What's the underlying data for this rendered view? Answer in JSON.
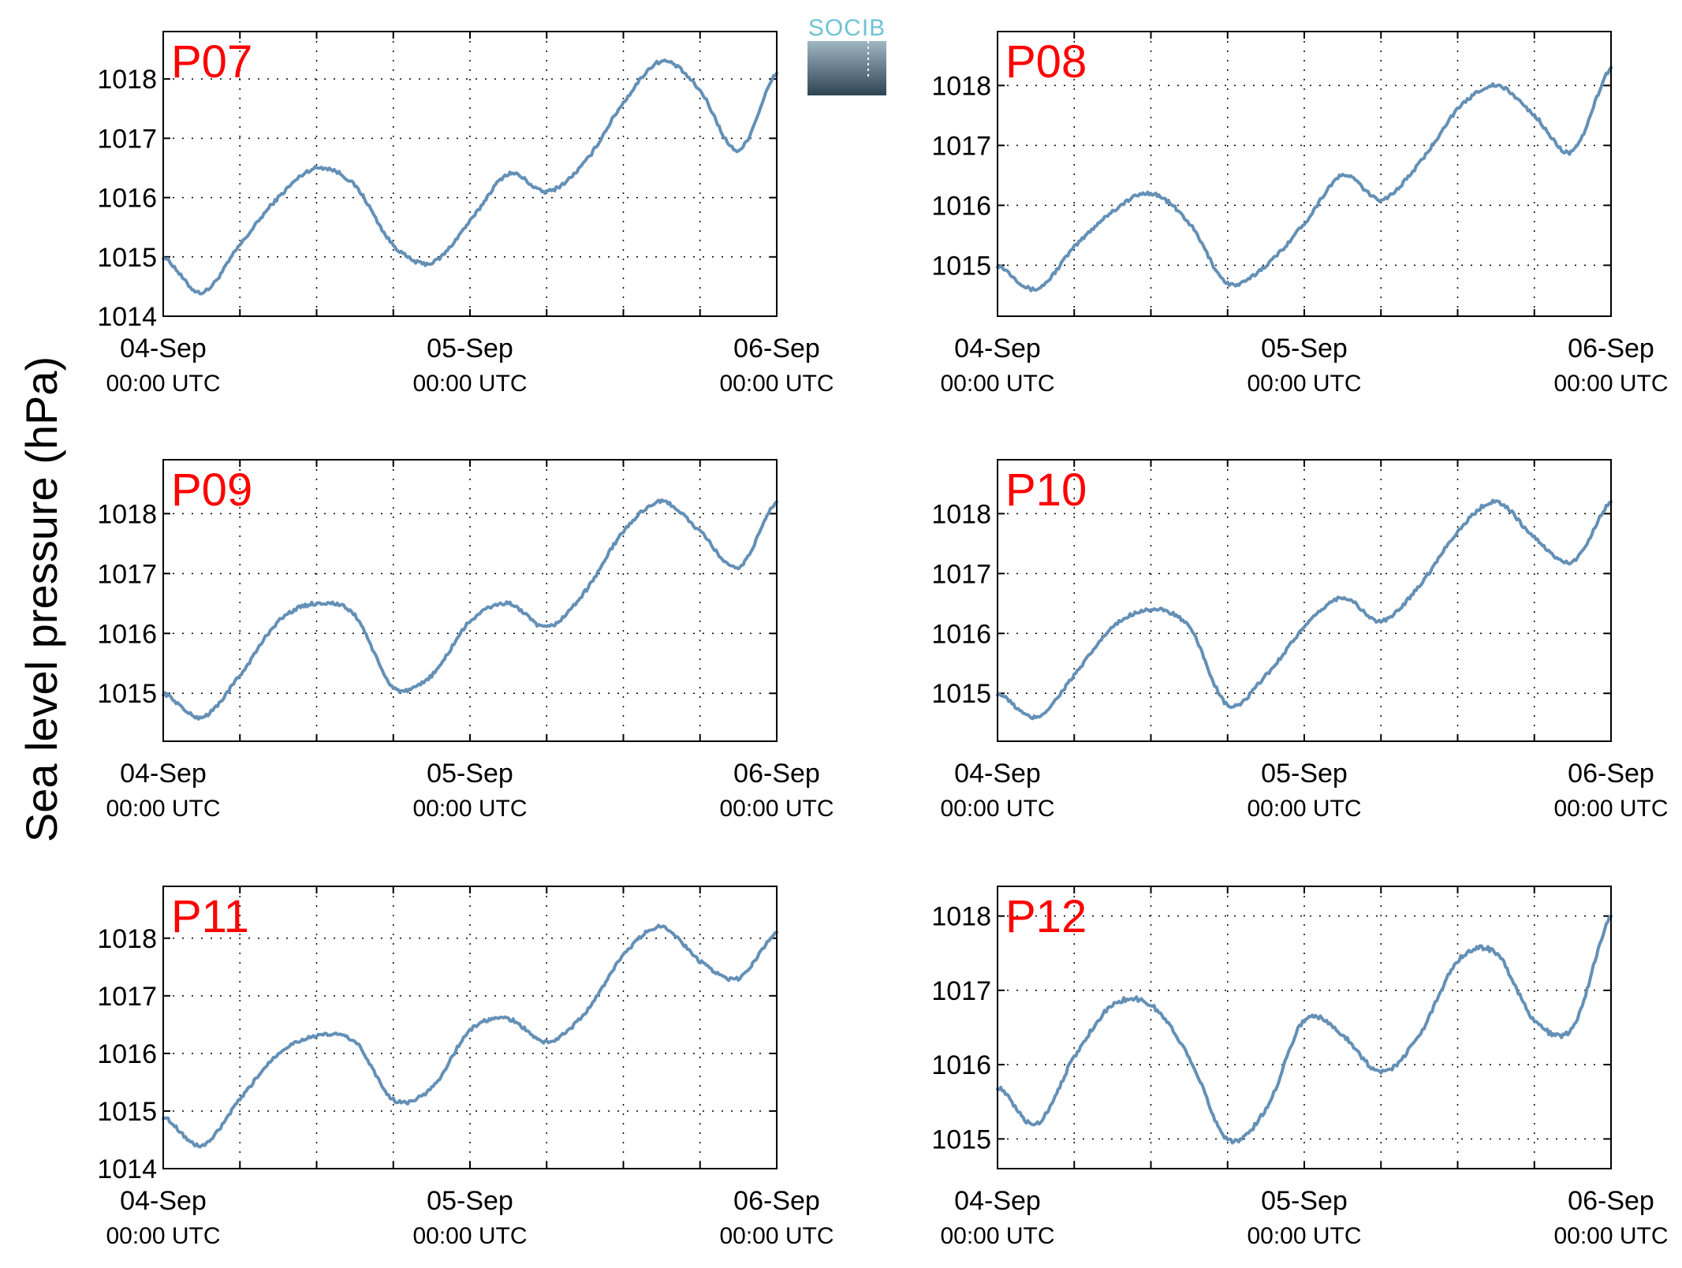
{
  "colors": {
    "series": "#6490b6",
    "title": "#ff0000",
    "axis": "#000000",
    "grid": "#000000"
  },
  "figure": {
    "ylabel": "Sea level pressure (hPa)",
    "logo": "SOCIB"
  },
  "chart_data": [
    {
      "type": "line",
      "title": "P07",
      "xticks": [
        {
          "date": "04-Sep",
          "time": "00:00 UTC"
        },
        {
          "date": "05-Sep",
          "time": "00:00 UTC"
        },
        {
          "date": "06-Sep",
          "time": "00:00 UTC"
        }
      ],
      "xlim": [
        "2023-09-04 00:00",
        "2023-09-06 00:00"
      ],
      "ylim": [
        1014,
        1018.8
      ],
      "yticks": [
        "1014",
        "1015",
        "1016",
        "1017",
        "1018"
      ],
      "grid": true,
      "x": [
        "2023-09-04 00:00",
        "2023-09-04 03:00",
        "2023-09-04 06:00",
        "2023-09-04 09:00",
        "2023-09-04 12:00",
        "2023-09-04 15:00",
        "2023-09-04 18:00",
        "2023-09-04 21:00",
        "2023-09-05 00:00",
        "2023-09-05 03:00",
        "2023-09-05 06:00",
        "2023-09-05 09:00",
        "2023-09-05 12:00",
        "2023-09-05 15:00",
        "2023-09-05 18:00",
        "2023-09-05 21:00",
        "2023-09-06 00:00"
      ],
      "y": [
        1015.0,
        1014.4,
        1015.2,
        1016.0,
        1016.5,
        1016.2,
        1015.2,
        1014.9,
        1015.6,
        1016.4,
        1016.1,
        1016.6,
        1017.6,
        1018.3,
        1017.8,
        1016.8,
        1018.1
      ]
    },
    {
      "type": "line",
      "title": "P08",
      "xticks": [
        {
          "date": "04-Sep",
          "time": "00:00 UTC"
        },
        {
          "date": "05-Sep",
          "time": "00:00 UTC"
        },
        {
          "date": "06-Sep",
          "time": "00:00 UTC"
        }
      ],
      "xlim": [
        "2023-09-04 00:00",
        "2023-09-06 00:00"
      ],
      "ylim": [
        1014.15,
        1018.9
      ],
      "yticks": [
        "1015",
        "1016",
        "1017",
        "1018"
      ],
      "grid": true,
      "x": [
        "2023-09-04 00:00",
        "2023-09-04 03:00",
        "2023-09-04 06:00",
        "2023-09-04 09:00",
        "2023-09-04 12:00",
        "2023-09-04 15:00",
        "2023-09-04 18:00",
        "2023-09-04 21:00",
        "2023-09-05 00:00",
        "2023-09-05 03:00",
        "2023-09-05 06:00",
        "2023-09-05 09:00",
        "2023-09-05 12:00",
        "2023-09-05 15:00",
        "2023-09-05 18:00",
        "2023-09-05 21:00",
        "2023-09-06 00:00"
      ],
      "y": [
        1015.0,
        1014.6,
        1015.3,
        1015.9,
        1016.2,
        1015.7,
        1014.7,
        1015.0,
        1015.7,
        1016.5,
        1016.1,
        1016.7,
        1017.6,
        1018.0,
        1017.5,
        1016.9,
        1018.3
      ]
    },
    {
      "type": "line",
      "title": "P09",
      "xticks": [
        {
          "date": "04-Sep",
          "time": "00:00 UTC"
        },
        {
          "date": "05-Sep",
          "time": "00:00 UTC"
        },
        {
          "date": "06-Sep",
          "time": "00:00 UTC"
        }
      ],
      "xlim": [
        "2023-09-04 00:00",
        "2023-09-06 00:00"
      ],
      "ylim": [
        1014.2,
        1018.9
      ],
      "yticks": [
        "1015",
        "1016",
        "1017",
        "1018"
      ],
      "grid": true,
      "x": [
        "2023-09-04 00:00",
        "2023-09-04 03:00",
        "2023-09-04 06:00",
        "2023-09-04 09:00",
        "2023-09-04 12:00",
        "2023-09-04 15:00",
        "2023-09-04 18:00",
        "2023-09-04 21:00",
        "2023-09-05 00:00",
        "2023-09-05 03:00",
        "2023-09-05 06:00",
        "2023-09-05 09:00",
        "2023-09-05 12:00",
        "2023-09-05 15:00",
        "2023-09-05 18:00",
        "2023-09-05 21:00",
        "2023-09-06 00:00"
      ],
      "y": [
        1015.0,
        1014.6,
        1015.3,
        1016.2,
        1016.5,
        1016.3,
        1015.1,
        1015.3,
        1016.2,
        1016.5,
        1016.1,
        1016.7,
        1017.7,
        1018.2,
        1017.7,
        1017.1,
        1018.2
      ]
    },
    {
      "type": "line",
      "title": "P10",
      "xticks": [
        {
          "date": "04-Sep",
          "time": "00:00 UTC"
        },
        {
          "date": "05-Sep",
          "time": "00:00 UTC"
        },
        {
          "date": "06-Sep",
          "time": "00:00 UTC"
        }
      ],
      "xlim": [
        "2023-09-04 00:00",
        "2023-09-06 00:00"
      ],
      "ylim": [
        1014.2,
        1018.9
      ],
      "yticks": [
        "1015",
        "1016",
        "1017",
        "1018"
      ],
      "grid": true,
      "x": [
        "2023-09-04 00:00",
        "2023-09-04 03:00",
        "2023-09-04 06:00",
        "2023-09-04 09:00",
        "2023-09-04 12:00",
        "2023-09-04 15:00",
        "2023-09-04 18:00",
        "2023-09-04 21:00",
        "2023-09-05 00:00",
        "2023-09-05 03:00",
        "2023-09-05 06:00",
        "2023-09-05 09:00",
        "2023-09-05 12:00",
        "2023-09-05 15:00",
        "2023-09-05 18:00",
        "2023-09-05 21:00",
        "2023-09-06 00:00"
      ],
      "y": [
        1015.0,
        1014.6,
        1015.3,
        1016.1,
        1016.4,
        1016.1,
        1014.8,
        1015.3,
        1016.1,
        1016.6,
        1016.2,
        1016.8,
        1017.7,
        1018.2,
        1017.6,
        1017.2,
        1018.2
      ]
    },
    {
      "type": "line",
      "title": "P11",
      "xticks": [
        {
          "date": "04-Sep",
          "time": "00:00 UTC"
        },
        {
          "date": "05-Sep",
          "time": "00:00 UTC"
        },
        {
          "date": "06-Sep",
          "time": "00:00 UTC"
        }
      ],
      "xlim": [
        "2023-09-04 00:00",
        "2023-09-06 00:00"
      ],
      "ylim": [
        1014,
        1018.9
      ],
      "yticks": [
        "1014",
        "1015",
        "1016",
        "1017",
        "1018"
      ],
      "grid": true,
      "x": [
        "2023-09-04 00:00",
        "2023-09-04 03:00",
        "2023-09-04 06:00",
        "2023-09-04 09:00",
        "2023-09-04 12:00",
        "2023-09-04 15:00",
        "2023-09-04 18:00",
        "2023-09-04 21:00",
        "2023-09-05 00:00",
        "2023-09-05 03:00",
        "2023-09-05 06:00",
        "2023-09-05 09:00",
        "2023-09-05 12:00",
        "2023-09-05 15:00",
        "2023-09-05 18:00",
        "2023-09-05 21:00",
        "2023-09-06 00:00"
      ],
      "y": [
        1014.9,
        1014.4,
        1015.2,
        1016.0,
        1016.3,
        1016.2,
        1015.2,
        1015.4,
        1016.4,
        1016.6,
        1016.2,
        1016.7,
        1017.7,
        1018.2,
        1017.6,
        1017.3,
        1018.1
      ]
    },
    {
      "type": "line",
      "title": "P12",
      "xticks": [
        {
          "date": "04-Sep",
          "time": "00:00 UTC"
        },
        {
          "date": "05-Sep",
          "time": "00:00 UTC"
        },
        {
          "date": "06-Sep",
          "time": "00:00 UTC"
        }
      ],
      "xlim": [
        "2023-09-04 00:00",
        "2023-09-06 00:00"
      ],
      "ylim": [
        1014.6,
        1018.4
      ],
      "yticks": [
        "1015",
        "1016",
        "1017",
        "1018"
      ],
      "grid": true,
      "x": [
        "2023-09-04 00:00",
        "2023-09-04 03:00",
        "2023-09-04 06:00",
        "2023-09-04 09:00",
        "2023-09-04 12:00",
        "2023-09-04 15:00",
        "2023-09-04 18:00",
        "2023-09-04 21:00",
        "2023-09-05 00:00",
        "2023-09-05 03:00",
        "2023-09-05 06:00",
        "2023-09-05 09:00",
        "2023-09-05 12:00",
        "2023-09-05 15:00",
        "2023-09-05 18:00",
        "2023-09-05 21:00",
        "2023-09-06 00:00"
      ],
      "y": [
        1015.7,
        1015.2,
        1016.1,
        1016.8,
        1016.8,
        1016.1,
        1015.0,
        1015.4,
        1016.6,
        1016.4,
        1015.9,
        1016.4,
        1017.4,
        1017.5,
        1016.6,
        1016.5,
        1018.0
      ]
    }
  ]
}
